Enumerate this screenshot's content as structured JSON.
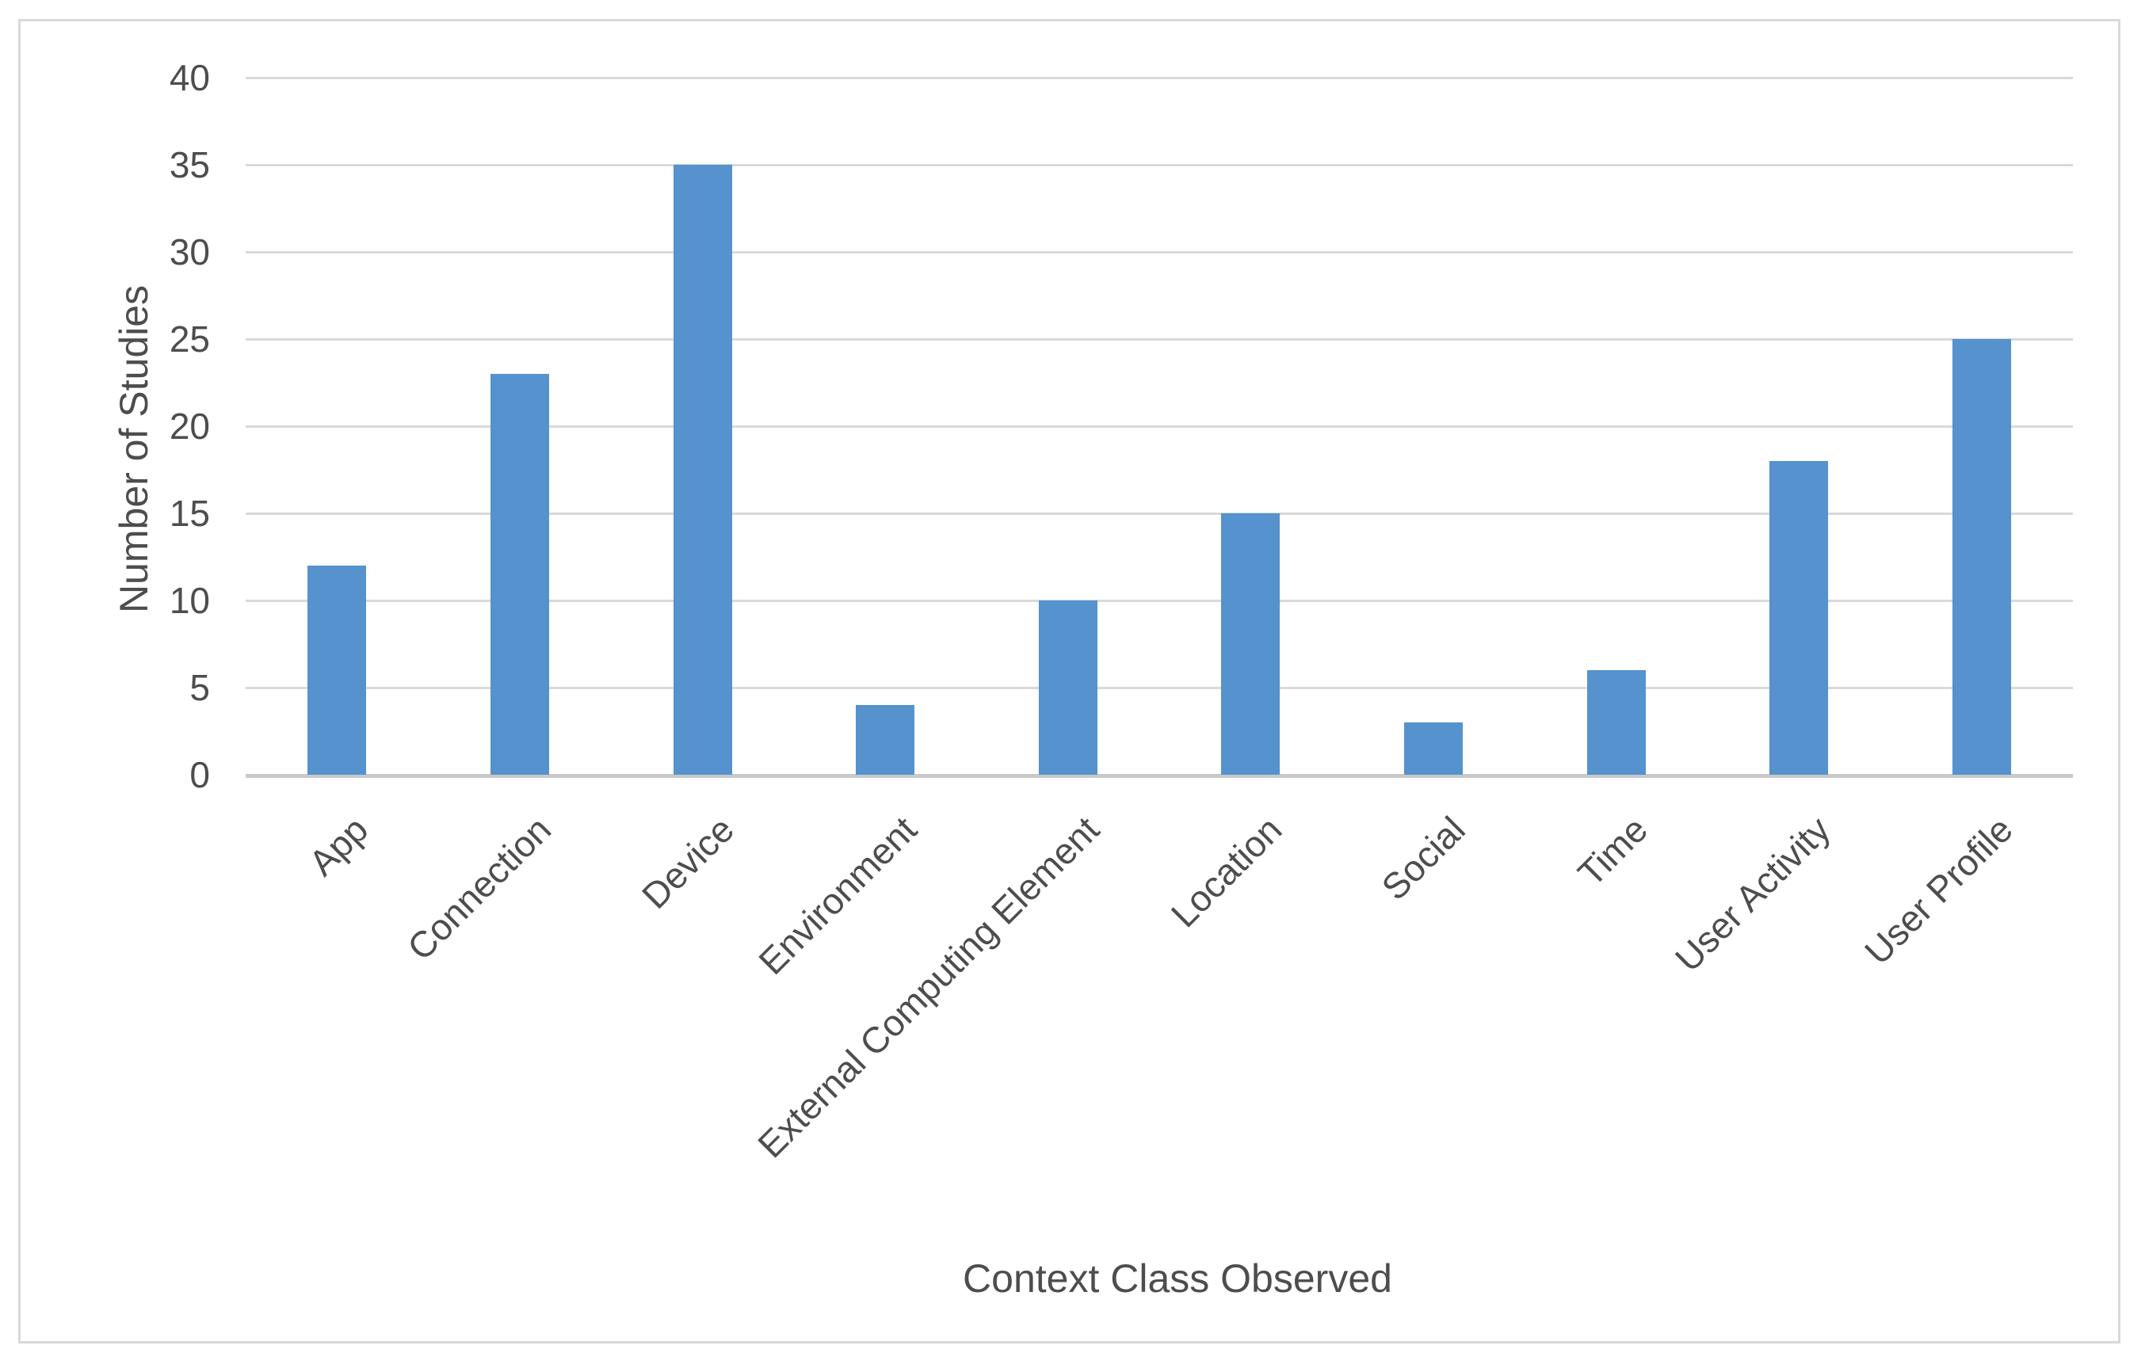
{
  "chart_data": {
    "type": "bar",
    "categories": [
      "App",
      "Connection",
      "Device",
      "Environment",
      "External Computing Element",
      "Location",
      "Social",
      "Time",
      "User Activity",
      "User Profile"
    ],
    "values": [
      12,
      23,
      35,
      4,
      10,
      15,
      3,
      6,
      18,
      25
    ],
    "title": "",
    "xlabel": "Context Class Observed",
    "ylabel": "Number of Studies",
    "ylim": [
      0,
      40
    ],
    "yticks": [
      0,
      5,
      10,
      15,
      20,
      25,
      30,
      35,
      40
    ],
    "grid": "horizontal",
    "legend_position": "none"
  },
  "colors": {
    "bar": "#5592CE",
    "gridline": "#D9D9D9",
    "axis_line": "#C9C9C9",
    "tick_text": "#4D4D4D",
    "axis_title_text": "#4D4D4D",
    "frame_border": "#D9D9D9",
    "background": "#FFFFFF"
  }
}
